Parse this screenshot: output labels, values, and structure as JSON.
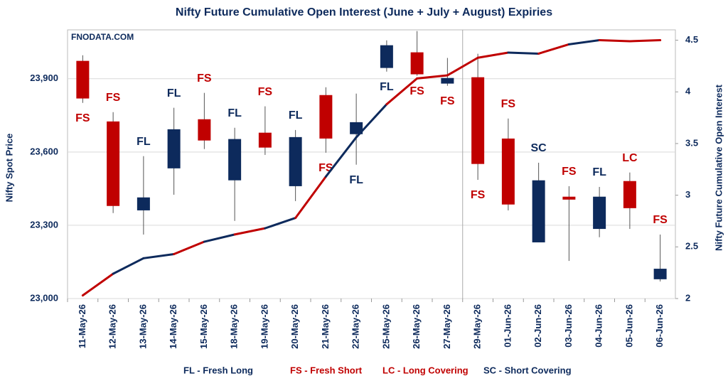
{
  "chart_data": {
    "type": "candlestick",
    "title": "Nifty Future Cumulative Open Interest (June + July + August) Expiries",
    "watermark": "FNODATA.COM",
    "ylabel": "Nifty Spot Price",
    "y2label": "Nifty Future Cumulative Open Interest",
    "categories": [
      "11-May-26",
      "12-May-26",
      "13-May-26",
      "14-May-26",
      "15-May-26",
      "18-May-26",
      "19-May-26",
      "20-May-26",
      "21-May-26",
      "22-May-26",
      "25-May-26",
      "26-May-26",
      "27-May-26",
      "29-May-26",
      "01-Jun-26",
      "02-Jun-26",
      "03-Jun-26",
      "04-Jun-26",
      "05-Jun-26",
      "06-Jun-26"
    ],
    "open": [
      23973,
      23725,
      23361,
      23533,
      23734,
      23484,
      23679,
      23460,
      23833,
      23673,
      23944,
      24008,
      23880,
      23906,
      23655,
      23230,
      23417,
      23285,
      23481,
      23079
    ],
    "high": [
      23996,
      23763,
      23583,
      23781,
      23842,
      23699,
      23787,
      23690,
      23865,
      23839,
      24057,
      24095,
      23985,
      24002,
      23737,
      23556,
      23460,
      23457,
      23516,
      23262
    ],
    "low": [
      23801,
      23350,
      23262,
      23425,
      23612,
      23318,
      23588,
      23399,
      23597,
      23548,
      23929,
      23912,
      23871,
      23486,
      23361,
      23230,
      23154,
      23251,
      23285,
      23070
    ],
    "close": [
      23819,
      23379,
      23414,
      23693,
      23647,
      23653,
      23618,
      23661,
      23655,
      23722,
      24037,
      23918,
      23903,
      23551,
      23385,
      23484,
      23405,
      23417,
      23370,
      23122
    ],
    "up_color": "#0d2a5c",
    "down_color": "#c00000",
    "signals": [
      "FS",
      "FS",
      "FL",
      "FL",
      "FS",
      "FL",
      "FS",
      "FL",
      "FS",
      "FL",
      "FL",
      "FS",
      "FS",
      "FS",
      "FS",
      "SC",
      "FS",
      "FL",
      "LC",
      "FS"
    ],
    "signal_colors": {
      "FL": "#0d2a5c",
      "FS": "#c00000",
      "LC": "#c00000",
      "SC": "#0d2a5c"
    },
    "line": {
      "axis": "y2",
      "values": [
        2.03,
        2.24,
        2.39,
        2.43,
        2.55,
        2.62,
        2.68,
        2.78,
        3.18,
        3.56,
        3.88,
        4.13,
        4.16,
        4.33,
        4.38,
        4.37,
        4.46,
        4.5,
        4.49,
        4.5
      ]
    },
    "ylim": [
      23000,
      24100
    ],
    "yticks": [
      {
        "value": 23000,
        "label": "23,000"
      },
      {
        "value": 23300,
        "label": "23,300"
      },
      {
        "value": 23600,
        "label": "23,600"
      },
      {
        "value": 23900,
        "label": "23,900"
      }
    ],
    "y2lim": [
      2,
      4.6
    ],
    "y2ticks": [
      2,
      2.5,
      3,
      3.5,
      4,
      4.5
    ],
    "grid": true,
    "legend": [
      {
        "label": "FL - Fresh Long",
        "color": "#0d2a5c"
      },
      {
        "label": "FS - Fresh Short",
        "color": "#c00000"
      },
      {
        "label": "LC - Long Covering",
        "color": "#c00000"
      },
      {
        "label": "SC - Short Covering",
        "color": "#0d2a5c"
      }
    ]
  }
}
